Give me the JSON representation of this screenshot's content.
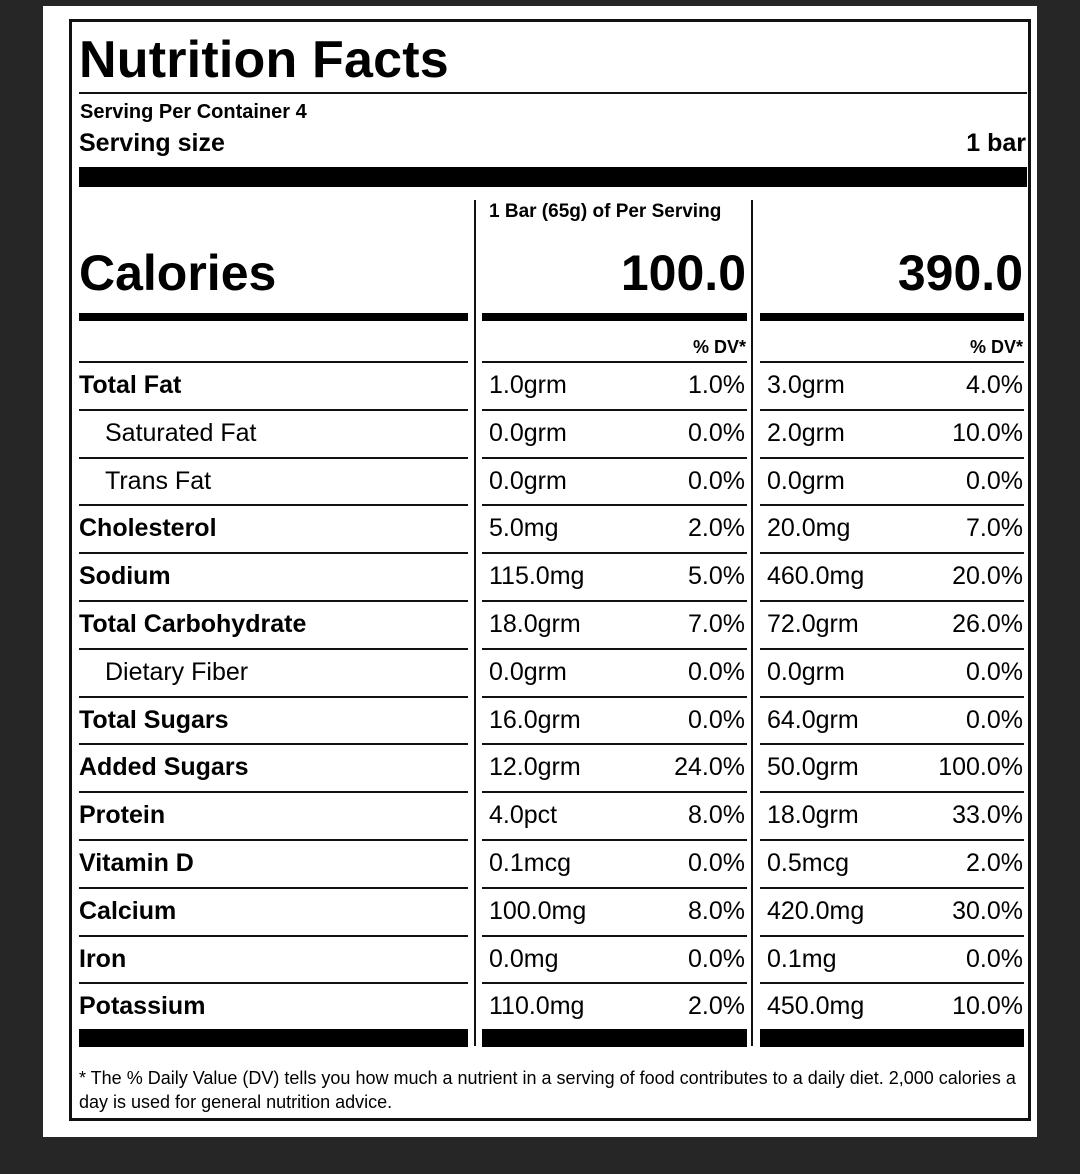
{
  "title": "Nutrition Facts",
  "servings_per_container": "Serving Per Container 4",
  "serving_size": {
    "label": "Serving size",
    "value": "1 bar"
  },
  "column_header": "1 Bar (65g) of Per Serving",
  "calories": {
    "label": "Calories",
    "per_serving": "100.0",
    "per_container": "390.0"
  },
  "dv_header": "% DV*",
  "nutrients": [
    {
      "name": "Total Fat",
      "bold": true,
      "indent": false,
      "amount1": "1.0grm",
      "dv1": "1.0%",
      "amount2": "3.0grm",
      "dv2": "4.0%"
    },
    {
      "name": "Saturated Fat",
      "bold": false,
      "indent": true,
      "amount1": "0.0grm",
      "dv1": "0.0%",
      "amount2": "2.0grm",
      "dv2": "10.0%"
    },
    {
      "name": "Trans Fat",
      "bold": false,
      "indent": true,
      "amount1": "0.0grm",
      "dv1": "0.0%",
      "amount2": "0.0grm",
      "dv2": "0.0%"
    },
    {
      "name": "Cholesterol",
      "bold": true,
      "indent": false,
      "amount1": "5.0mg",
      "dv1": "2.0%",
      "amount2": "20.0mg",
      "dv2": "7.0%"
    },
    {
      "name": "Sodium",
      "bold": true,
      "indent": false,
      "amount1": "115.0mg",
      "dv1": "5.0%",
      "amount2": "460.0mg",
      "dv2": "20.0%"
    },
    {
      "name": "Total Carbohydrate",
      "bold": true,
      "indent": false,
      "amount1": "18.0grm",
      "dv1": "7.0%",
      "amount2": "72.0grm",
      "dv2": "26.0%"
    },
    {
      "name": "Dietary Fiber",
      "bold": false,
      "indent": true,
      "amount1": "0.0grm",
      "dv1": "0.0%",
      "amount2": "0.0grm",
      "dv2": "0.0%"
    },
    {
      "name": "Total Sugars",
      "bold": true,
      "indent": false,
      "amount1": "16.0grm",
      "dv1": "0.0%",
      "amount2": "64.0grm",
      "dv2": "0.0%"
    },
    {
      "name": "Added Sugars",
      "bold": true,
      "indent": false,
      "amount1": "12.0grm",
      "dv1": "24.0%",
      "amount2": "50.0grm",
      "dv2": "100.0%"
    },
    {
      "name": "Protein",
      "bold": true,
      "indent": false,
      "amount1": "4.0pct",
      "dv1": "8.0%",
      "amount2": "18.0grm",
      "dv2": "33.0%"
    },
    {
      "name": "Vitamin D",
      "bold": true,
      "indent": false,
      "amount1": "0.1mcg",
      "dv1": "0.0%",
      "amount2": "0.5mcg",
      "dv2": "2.0%"
    },
    {
      "name": "Calcium",
      "bold": true,
      "indent": false,
      "amount1": "100.0mg",
      "dv1": "8.0%",
      "amount2": "420.0mg",
      "dv2": "30.0%"
    },
    {
      "name": "Iron",
      "bold": true,
      "indent": false,
      "amount1": "0.0mg",
      "dv1": "0.0%",
      "amount2": "0.1mg",
      "dv2": "0.0%"
    },
    {
      "name": "Potassium",
      "bold": true,
      "indent": false,
      "amount1": "110.0mg",
      "dv1": "2.0%",
      "amount2": "450.0mg",
      "dv2": "10.0%"
    }
  ],
  "footnote": "* The % Daily Value (DV) tells you how much a nutrient in a serving of food contributes to a daily diet. 2,000 calories a day is used for general nutrition advice."
}
